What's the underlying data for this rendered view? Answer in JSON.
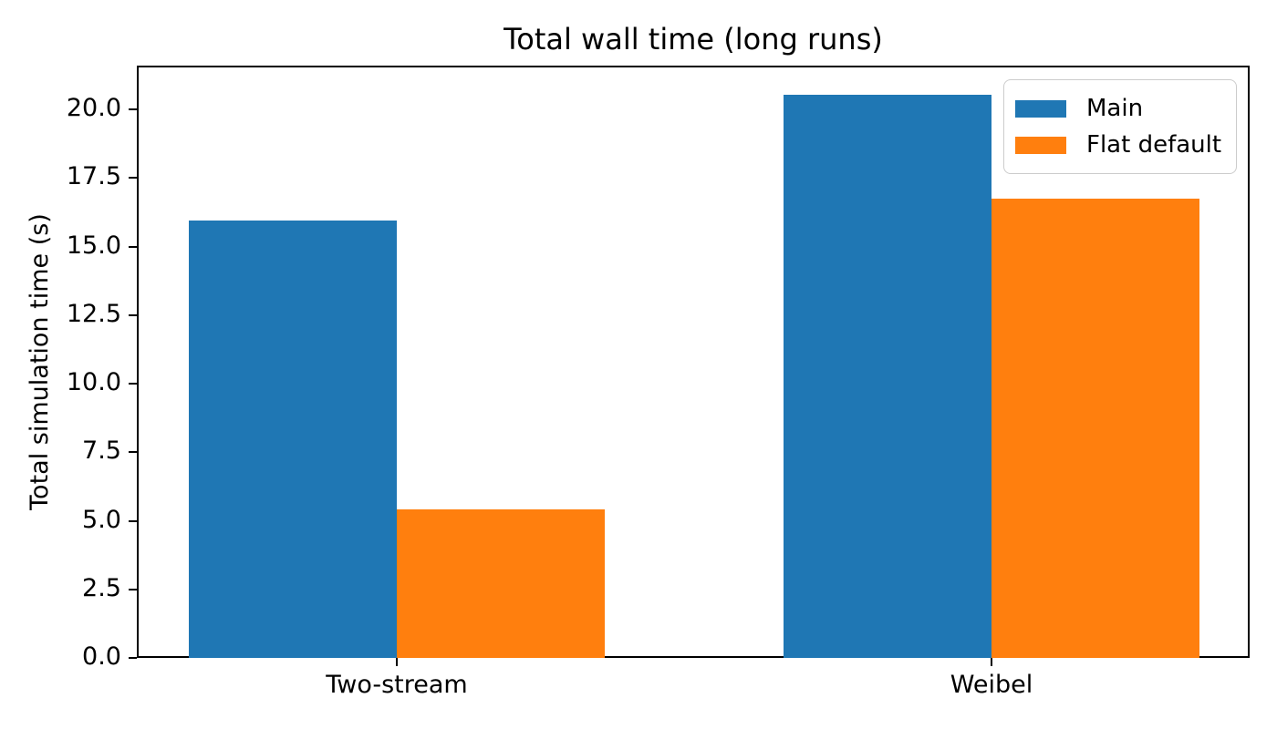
{
  "figure": {
    "title": "Total wall time (long runs)",
    "ylabel": "Total simulation time (s)"
  },
  "chart_data": {
    "type": "bar",
    "title": "Total wall time (long runs)",
    "xlabel": "",
    "ylabel": "Total simulation time (s)",
    "categories": [
      "Two-stream",
      "Weibel"
    ],
    "series": [
      {
        "name": "Main",
        "color": "#1f77b4",
        "values": [
          15.95,
          20.55
        ]
      },
      {
        "name": "Flat default",
        "color": "#ff7f0e",
        "values": [
          5.4,
          16.75
        ]
      }
    ],
    "ylim": [
      0,
      21.6
    ],
    "yticks": [
      0.0,
      2.5,
      5.0,
      7.5,
      10.0,
      12.5,
      15.0,
      17.5,
      20.0
    ],
    "ytick_labels": [
      "0.0",
      "2.5",
      "5.0",
      "7.5",
      "10.0",
      "12.5",
      "15.0",
      "17.5",
      "20.0"
    ],
    "legend_position": "upper right",
    "grid": false,
    "bar_width_fraction": 0.35,
    "background_color": "#ffffff",
    "text_color": "#000000"
  }
}
